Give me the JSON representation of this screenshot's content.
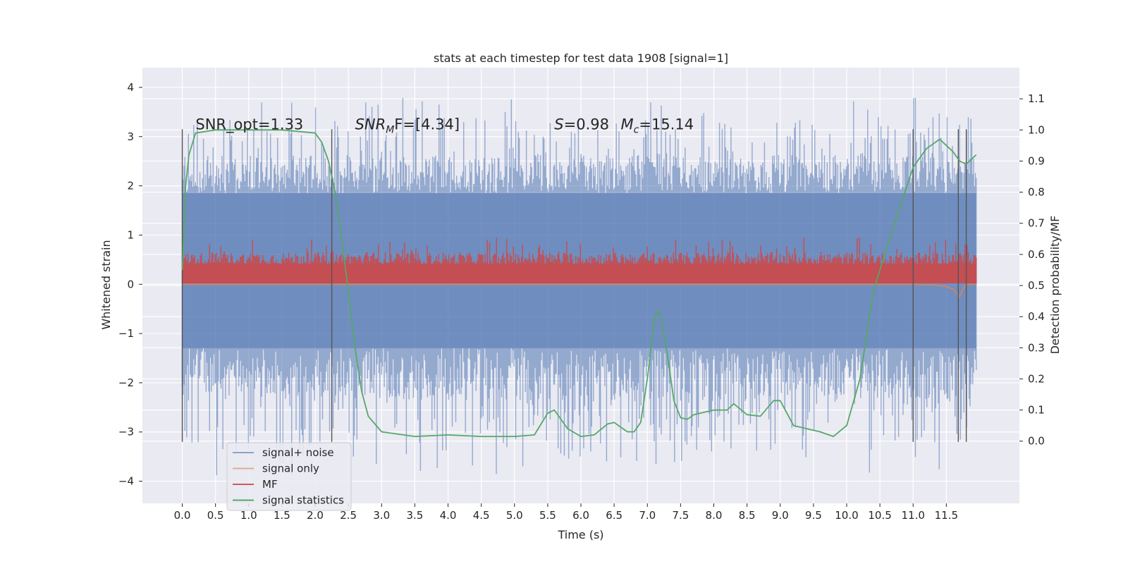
{
  "chart_data": {
    "type": "line",
    "title": "stats at each timestep for test data 1908 [signal=1]",
    "xlabel": "Time (s)",
    "ylabel": "Whitened strain",
    "y2label": "Detection probability/MF",
    "xlim": [
      -0.6,
      12.6
    ],
    "ylim": [
      -4.45,
      4.4
    ],
    "y2lim": [
      -0.2,
      1.2
    ],
    "x_ticks": [
      0.0,
      0.5,
      1.0,
      1.5,
      2.0,
      2.5,
      3.0,
      3.5,
      4.0,
      4.5,
      5.0,
      5.5,
      6.0,
      6.5,
      7.0,
      7.5,
      8.0,
      8.5,
      9.0,
      9.5,
      10.0,
      10.5,
      11.0,
      11.5
    ],
    "x_tick_labels": [
      "0.0",
      "0.5",
      "1.0",
      "1.5",
      "2.0",
      "2.5",
      "3.0",
      "3.5",
      "4.0",
      "4.5",
      "5.0",
      "5.5",
      "6.0",
      "6.5",
      "7.0",
      "7.5",
      "8.0",
      "8.5",
      "9.0",
      "9.5",
      "10.0",
      "10.5",
      "11.0",
      "11.5"
    ],
    "y_ticks": [
      4,
      3,
      2,
      1,
      0,
      -1,
      -2,
      -3,
      -4
    ],
    "y_tick_labels": [
      "4",
      "3",
      "2",
      "1",
      "0",
      "−1",
      "−2",
      "−3",
      "−4"
    ],
    "y2_ticks": [
      1.1,
      1.0,
      0.9,
      0.8,
      0.7,
      0.6,
      0.5,
      0.4,
      0.3,
      0.2,
      0.1,
      0.0
    ],
    "y2_tick_labels": [
      "1.1",
      "1.0",
      "0.9",
      "0.8",
      "0.7",
      "0.6",
      "0.5",
      "0.4",
      "0.3",
      "0.2",
      "0.1",
      "0.0"
    ],
    "grid": true,
    "legend_position": "lower-left",
    "annotations": [
      {
        "text": "SNR_opt=1.33",
        "x": 0.2,
        "y": 3.15
      },
      {
        "text": "SNR",
        "sub": "M",
        "tail": "F=[4.34]",
        "x": 2.6,
        "y": 3.15
      },
      {
        "text": "S",
        "tail": "=0.98",
        "x": 5.6,
        "y": 3.15
      },
      {
        "text": "M",
        "sub": "c",
        "tail": "=15.14",
        "x": 6.6,
        "y": 3.15
      }
    ],
    "vertical_lines": [
      0.0,
      2.25,
      11.0,
      11.68,
      11.8
    ],
    "vertical_line_range": [
      -3.2,
      3.15
    ],
    "series": [
      {
        "name": "signal+ noise",
        "color": "#4c72b0",
        "opacity": 0.5,
        "axis": "left",
        "x_range": [
          0.0,
          11.95
        ],
        "spread_high": 3.4,
        "spread_low": -3.4,
        "typical_fill": [
          -1.3,
          1.85
        ]
      },
      {
        "name": "signal only",
        "color": "#dd8452",
        "opacity": 0.6,
        "axis": "left",
        "x": [
          0.0,
          11.0,
          11.3,
          11.5,
          11.6,
          11.7,
          11.75,
          11.8,
          11.95
        ],
        "y": [
          0.0,
          0.0,
          -0.01,
          -0.05,
          -0.1,
          -0.25,
          -0.1,
          0.0,
          0.0
        ]
      },
      {
        "name": "MF",
        "color": "#c44e52",
        "opacity": 0.9,
        "axis": "left",
        "x_range": [
          0.0,
          11.95
        ],
        "band": [
          0.0,
          0.65
        ],
        "peak_max": 0.95
      },
      {
        "name": "signal statistics",
        "color": "#55a868",
        "axis": "right",
        "x": [
          0.0,
          0.05,
          0.1,
          0.2,
          0.5,
          1.0,
          1.5,
          2.0,
          2.1,
          2.2,
          2.3,
          2.4,
          2.5,
          2.6,
          2.7,
          2.8,
          3.0,
          3.5,
          4.0,
          4.5,
          5.0,
          5.3,
          5.5,
          5.6,
          5.8,
          6.0,
          6.2,
          6.4,
          6.5,
          6.6,
          6.7,
          6.8,
          6.9,
          7.0,
          7.1,
          7.15,
          7.2,
          7.3,
          7.4,
          7.5,
          7.6,
          7.7,
          7.9,
          8.0,
          8.2,
          8.3,
          8.5,
          8.7,
          8.9,
          9.0,
          9.2,
          9.4,
          9.6,
          9.8,
          10.0,
          10.2,
          10.4,
          10.6,
          10.8,
          11.0,
          11.2,
          11.4,
          11.6,
          11.7,
          11.8,
          11.95
        ],
        "y": [
          0.55,
          0.82,
          0.92,
          0.99,
          1.0,
          1.0,
          1.0,
          0.99,
          0.96,
          0.9,
          0.8,
          0.65,
          0.48,
          0.3,
          0.16,
          0.08,
          0.03,
          0.015,
          0.02,
          0.015,
          0.015,
          0.02,
          0.09,
          0.1,
          0.04,
          0.015,
          0.02,
          0.055,
          0.06,
          0.045,
          0.03,
          0.03,
          0.06,
          0.2,
          0.38,
          0.42,
          0.4,
          0.28,
          0.13,
          0.075,
          0.07,
          0.085,
          0.095,
          0.1,
          0.1,
          0.12,
          0.085,
          0.08,
          0.13,
          0.13,
          0.05,
          0.04,
          0.03,
          0.015,
          0.05,
          0.2,
          0.48,
          0.62,
          0.75,
          0.88,
          0.94,
          0.97,
          0.93,
          0.9,
          0.89,
          0.92
        ]
      }
    ]
  }
}
